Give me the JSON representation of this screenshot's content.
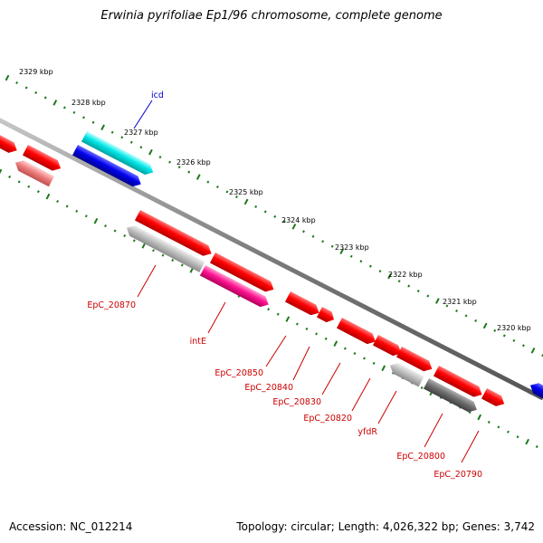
{
  "title": "Erwinia pyrifoliae Ep1/96 chromosome, complete genome",
  "footer": {
    "accession": "Accession: NC_012214",
    "topology": "Topology: circular; Length: 4,026,322 bp; Genes: 3,742"
  },
  "colors": {
    "backbone": "#8a8a8a",
    "tick": "#1a7a1a",
    "label_forward": "#0000cc",
    "label_reverse": "#cc0000",
    "feature_red": "#ff0000",
    "feature_cyan": "#00e6e6",
    "feature_blue": "#0000ee",
    "feature_grey": "#c0c0c0",
    "feature_dark_grey": "#707070",
    "feature_pink": "#ff1493",
    "feature_salmon": "#f08080"
  },
  "scale": {
    "unit": "kbp",
    "labels": [
      "2329 kbp",
      "2328 kbp",
      "2327 kbp",
      "2326 kbp",
      "2325 kbp",
      "2324 kbp",
      "2323 kbp",
      "2322 kbp",
      "2321 kbp",
      "2320 kbp"
    ]
  },
  "gene_labels": [
    {
      "name": "icd",
      "strand": "forward"
    },
    {
      "name": "EpC_20870",
      "strand": "reverse"
    },
    {
      "name": "intE",
      "strand": "reverse"
    },
    {
      "name": "EpC_20850",
      "strand": "reverse"
    },
    {
      "name": "EpC_20840",
      "strand": "reverse"
    },
    {
      "name": "EpC_20830",
      "strand": "reverse"
    },
    {
      "name": "EpC_20820",
      "strand": "reverse"
    },
    {
      "name": "yfdR",
      "strand": "reverse"
    },
    {
      "name": "EpC_20800",
      "strand": "reverse"
    },
    {
      "name": "EpC_20790",
      "strand": "reverse"
    }
  ],
  "features": [
    {
      "color": "red"
    },
    {
      "color": "red"
    },
    {
      "color": "salmon"
    },
    {
      "color": "cyan"
    },
    {
      "color": "blue"
    },
    {
      "color": "red"
    },
    {
      "color": "grey"
    },
    {
      "color": "red"
    },
    {
      "color": "pink"
    },
    {
      "color": "red"
    },
    {
      "color": "red"
    },
    {
      "color": "red"
    },
    {
      "color": "red"
    },
    {
      "color": "red"
    },
    {
      "color": "grey"
    },
    {
      "color": "red"
    },
    {
      "color": "dark_grey"
    },
    {
      "color": "red"
    },
    {
      "color": "blue"
    }
  ]
}
